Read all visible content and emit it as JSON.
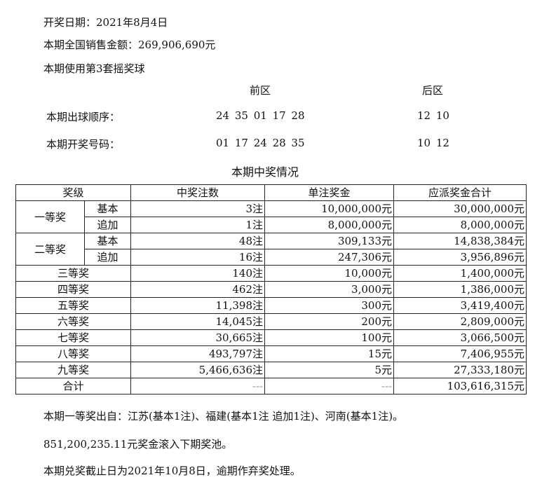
{
  "info": {
    "date": "开奖日期：2021年8月4日",
    "sales": "本期全国销售金额：269,906,690元",
    "ballset": "本期使用第3套摇奖球"
  },
  "draw": {
    "front_label": "前区",
    "back_label": "后区",
    "order_label": "本期出球顺序：",
    "order_front": "24 35 01 17 28",
    "order_back": "12 10",
    "result_label": "本期开奖号码：",
    "result_front": "01 17 24 28 35",
    "result_back": "10 12"
  },
  "table": {
    "title": "本期中奖情况",
    "headers": [
      "奖级",
      "中奖注数",
      "单注奖金",
      "应派奖金合计"
    ],
    "rows": [
      {
        "level": "一等奖",
        "sub": "基本",
        "count": "3注",
        "prize": "10,000,000元",
        "total": "30,000,000元"
      },
      {
        "level": "一等奖",
        "sub": "追加",
        "count": "1注",
        "prize": "8,000,000元",
        "total": "8,000,000元"
      },
      {
        "level": "二等奖",
        "sub": "基本",
        "count": "48注",
        "prize": "309,133元",
        "total": "14,838,384元"
      },
      {
        "level": "二等奖",
        "sub": "追加",
        "count": "16注",
        "prize": "247,306元",
        "total": "3,956,896元"
      },
      {
        "level": "三等奖",
        "count": "140注",
        "prize": "10,000元",
        "total": "1,400,000元"
      },
      {
        "level": "四等奖",
        "count": "462注",
        "prize": "3,000元",
        "total": "1,386,000元"
      },
      {
        "level": "五等奖",
        "count": "11,398注",
        "prize": "300元",
        "total": "3,419,400元"
      },
      {
        "level": "六等奖",
        "count": "14,045注",
        "prize": "200元",
        "total": "2,809,000元"
      },
      {
        "level": "七等奖",
        "count": "30,665注",
        "prize": "100元",
        "total": "3,066,500元"
      },
      {
        "level": "八等奖",
        "count": "493,797注",
        "prize": "15元",
        "total": "7,406,955元"
      },
      {
        "level": "九等奖",
        "count": "5,466,636注",
        "prize": "5元",
        "total": "27,333,180元"
      },
      {
        "level": "合计",
        "count": "---",
        "prize": "---",
        "total": "103,616,315元"
      }
    ]
  },
  "footer": {
    "winners": "本期一等奖出自：江苏(基本1注)、福建(基本1注 追加1注)、河南(基本1注)。",
    "rollover": "851,200,235.11元奖金滚入下期奖池。",
    "deadline": "本期兑奖截止日为2021年10月8日，逾期作弃奖处理。"
  }
}
